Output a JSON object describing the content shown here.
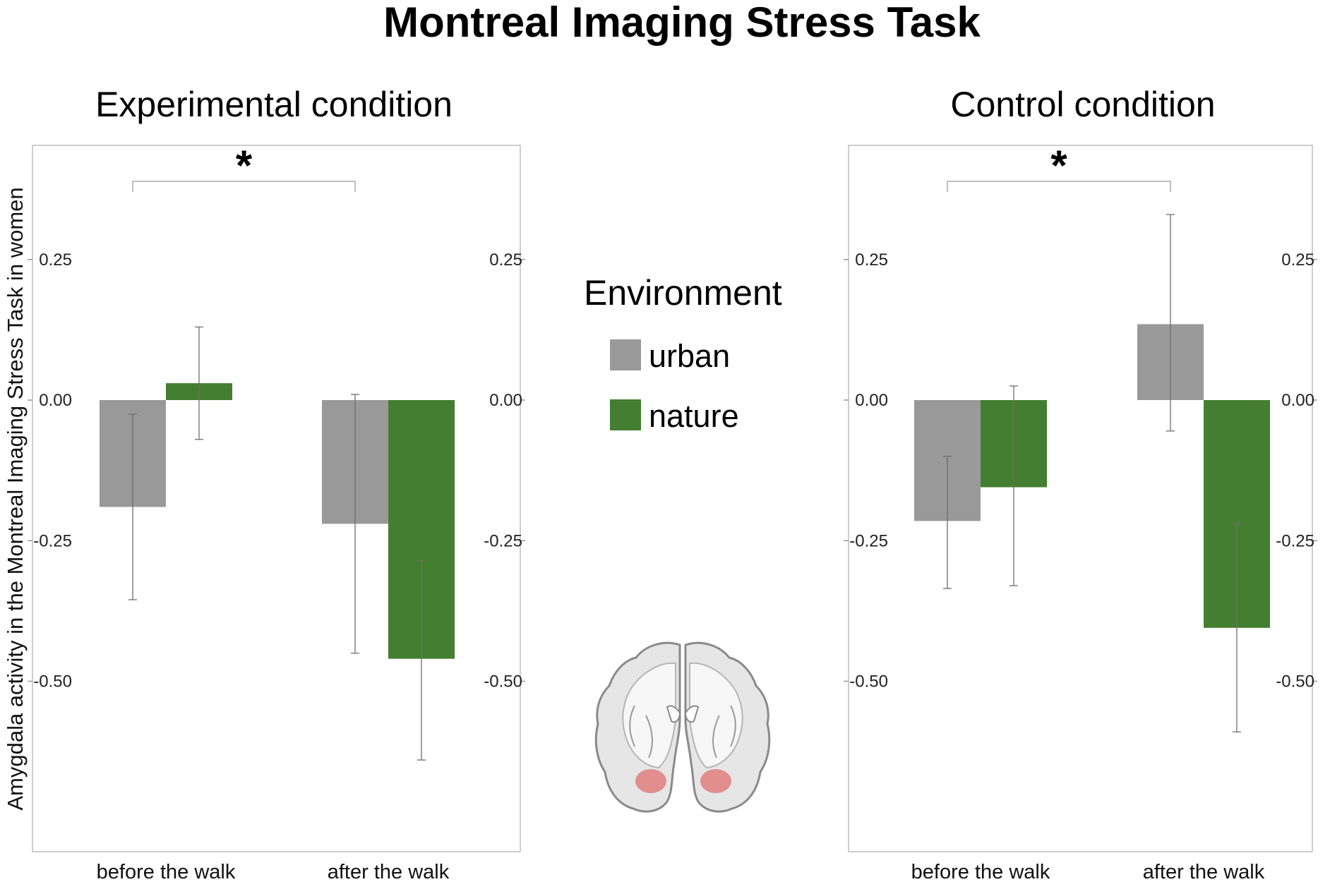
{
  "figure_title": "Montreal Imaging Stress Task",
  "y_axis_label": "Amygdala activity in the Montreal Imaging Stress Task in women",
  "legend": {
    "title": "Environment",
    "items": [
      {
        "label": "urban",
        "color": "#999999"
      },
      {
        "label": "nature",
        "color": "#447e31"
      }
    ]
  },
  "brain_image": {
    "icon": "brain-coronal-slice-amygdala-icon",
    "highlight_color": "#e07070"
  },
  "chart_data": [
    {
      "type": "bar",
      "title": "Experimental condition",
      "categories": [
        "before the walk",
        "after the walk"
      ],
      "series": [
        {
          "name": "urban",
          "color": "#999999",
          "values": [
            -0.19,
            -0.22
          ],
          "error_low": [
            -0.355,
            -0.45
          ],
          "error_high": [
            -0.025,
            0.01
          ]
        },
        {
          "name": "nature",
          "color": "#447e31",
          "values": [
            0.03,
            -0.46
          ],
          "error_low": [
            -0.07,
            -0.64
          ],
          "error_high": [
            0.13,
            -0.285
          ]
        }
      ],
      "ylim": [
        -0.8,
        0.45
      ],
      "yticks": [
        0.25,
        0.0,
        -0.25,
        -0.5
      ],
      "ytick_labels": [
        "0.25",
        "0.00",
        "-0.25",
        "-0.50"
      ],
      "ytick_labels_right": true,
      "significance": {
        "label": "*",
        "between_categories": [
          "before the walk",
          "after the walk"
        ]
      },
      "grid": false
    },
    {
      "type": "bar",
      "title": "Control condition",
      "categories": [
        "before the walk",
        "after the walk"
      ],
      "series": [
        {
          "name": "urban",
          "color": "#999999",
          "values": [
            -0.215,
            0.135
          ],
          "error_low": [
            -0.335,
            -0.055
          ],
          "error_high": [
            -0.1,
            0.33
          ]
        },
        {
          "name": "nature",
          "color": "#447e31",
          "values": [
            -0.155,
            -0.405
          ],
          "error_low": [
            -0.33,
            -0.59
          ],
          "error_high": [
            0.025,
            -0.22
          ]
        }
      ],
      "ylim": [
        -0.8,
        0.45
      ],
      "yticks": [
        0.25,
        0.0,
        -0.25,
        -0.5
      ],
      "ytick_labels": [
        "0.25",
        "0.00",
        "-0.25",
        "-0.50"
      ],
      "ytick_labels_right": true,
      "significance": {
        "label": "*",
        "between_categories": [
          "before the walk",
          "after the walk"
        ]
      },
      "grid": false
    }
  ]
}
